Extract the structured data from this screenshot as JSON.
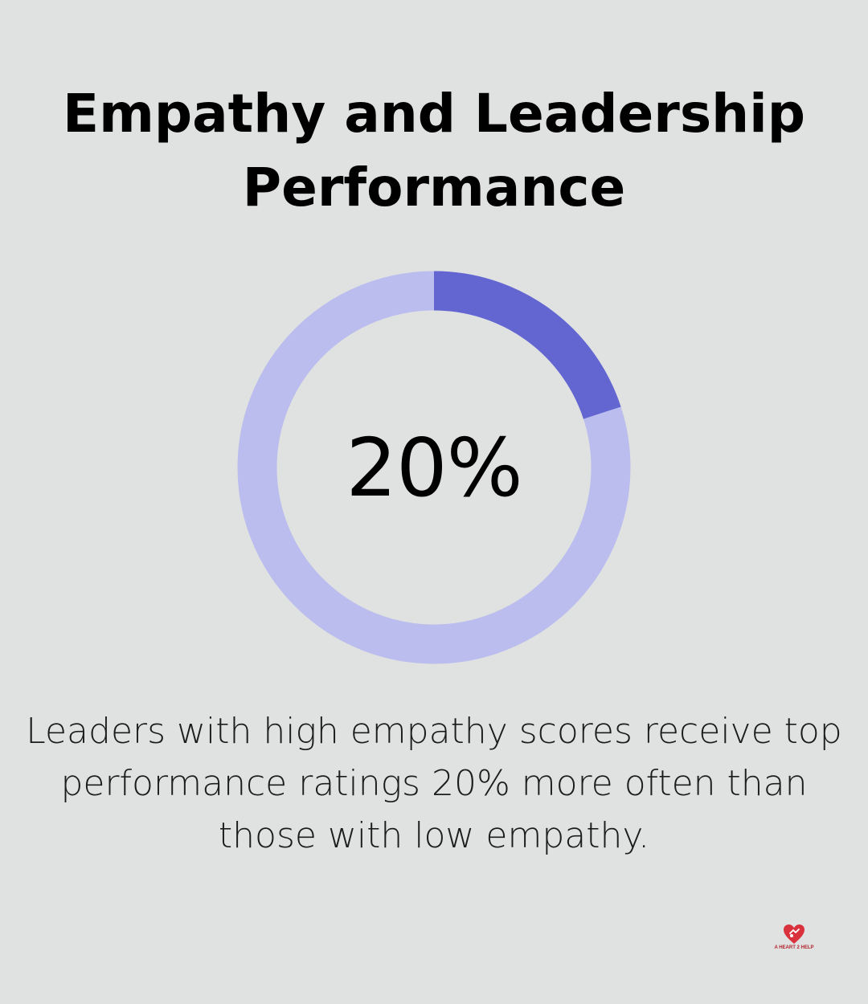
{
  "title": {
    "line1": "Empathy and Leadership",
    "line2": "Performance"
  },
  "chart_data": {
    "type": "pie",
    "variant": "donut",
    "title": "Empathy and Leadership Performance",
    "center_label": "20%",
    "slices": [
      {
        "label": "highlighted",
        "value": 20
      },
      {
        "label": "remainder",
        "value": 80
      }
    ],
    "colors": {
      "highlight": "#6366d1",
      "remainder": "#babded"
    }
  },
  "description": {
    "line1": "Leaders with high empathy scores receive top",
    "line2": "performance ratings 20% more often than",
    "line3": "those with low empathy."
  },
  "logo": {
    "text": "A HEART 2 HELP"
  },
  "colors": {
    "background": "#e0e2e1",
    "text": "#000000",
    "logo": "#d9323d"
  }
}
